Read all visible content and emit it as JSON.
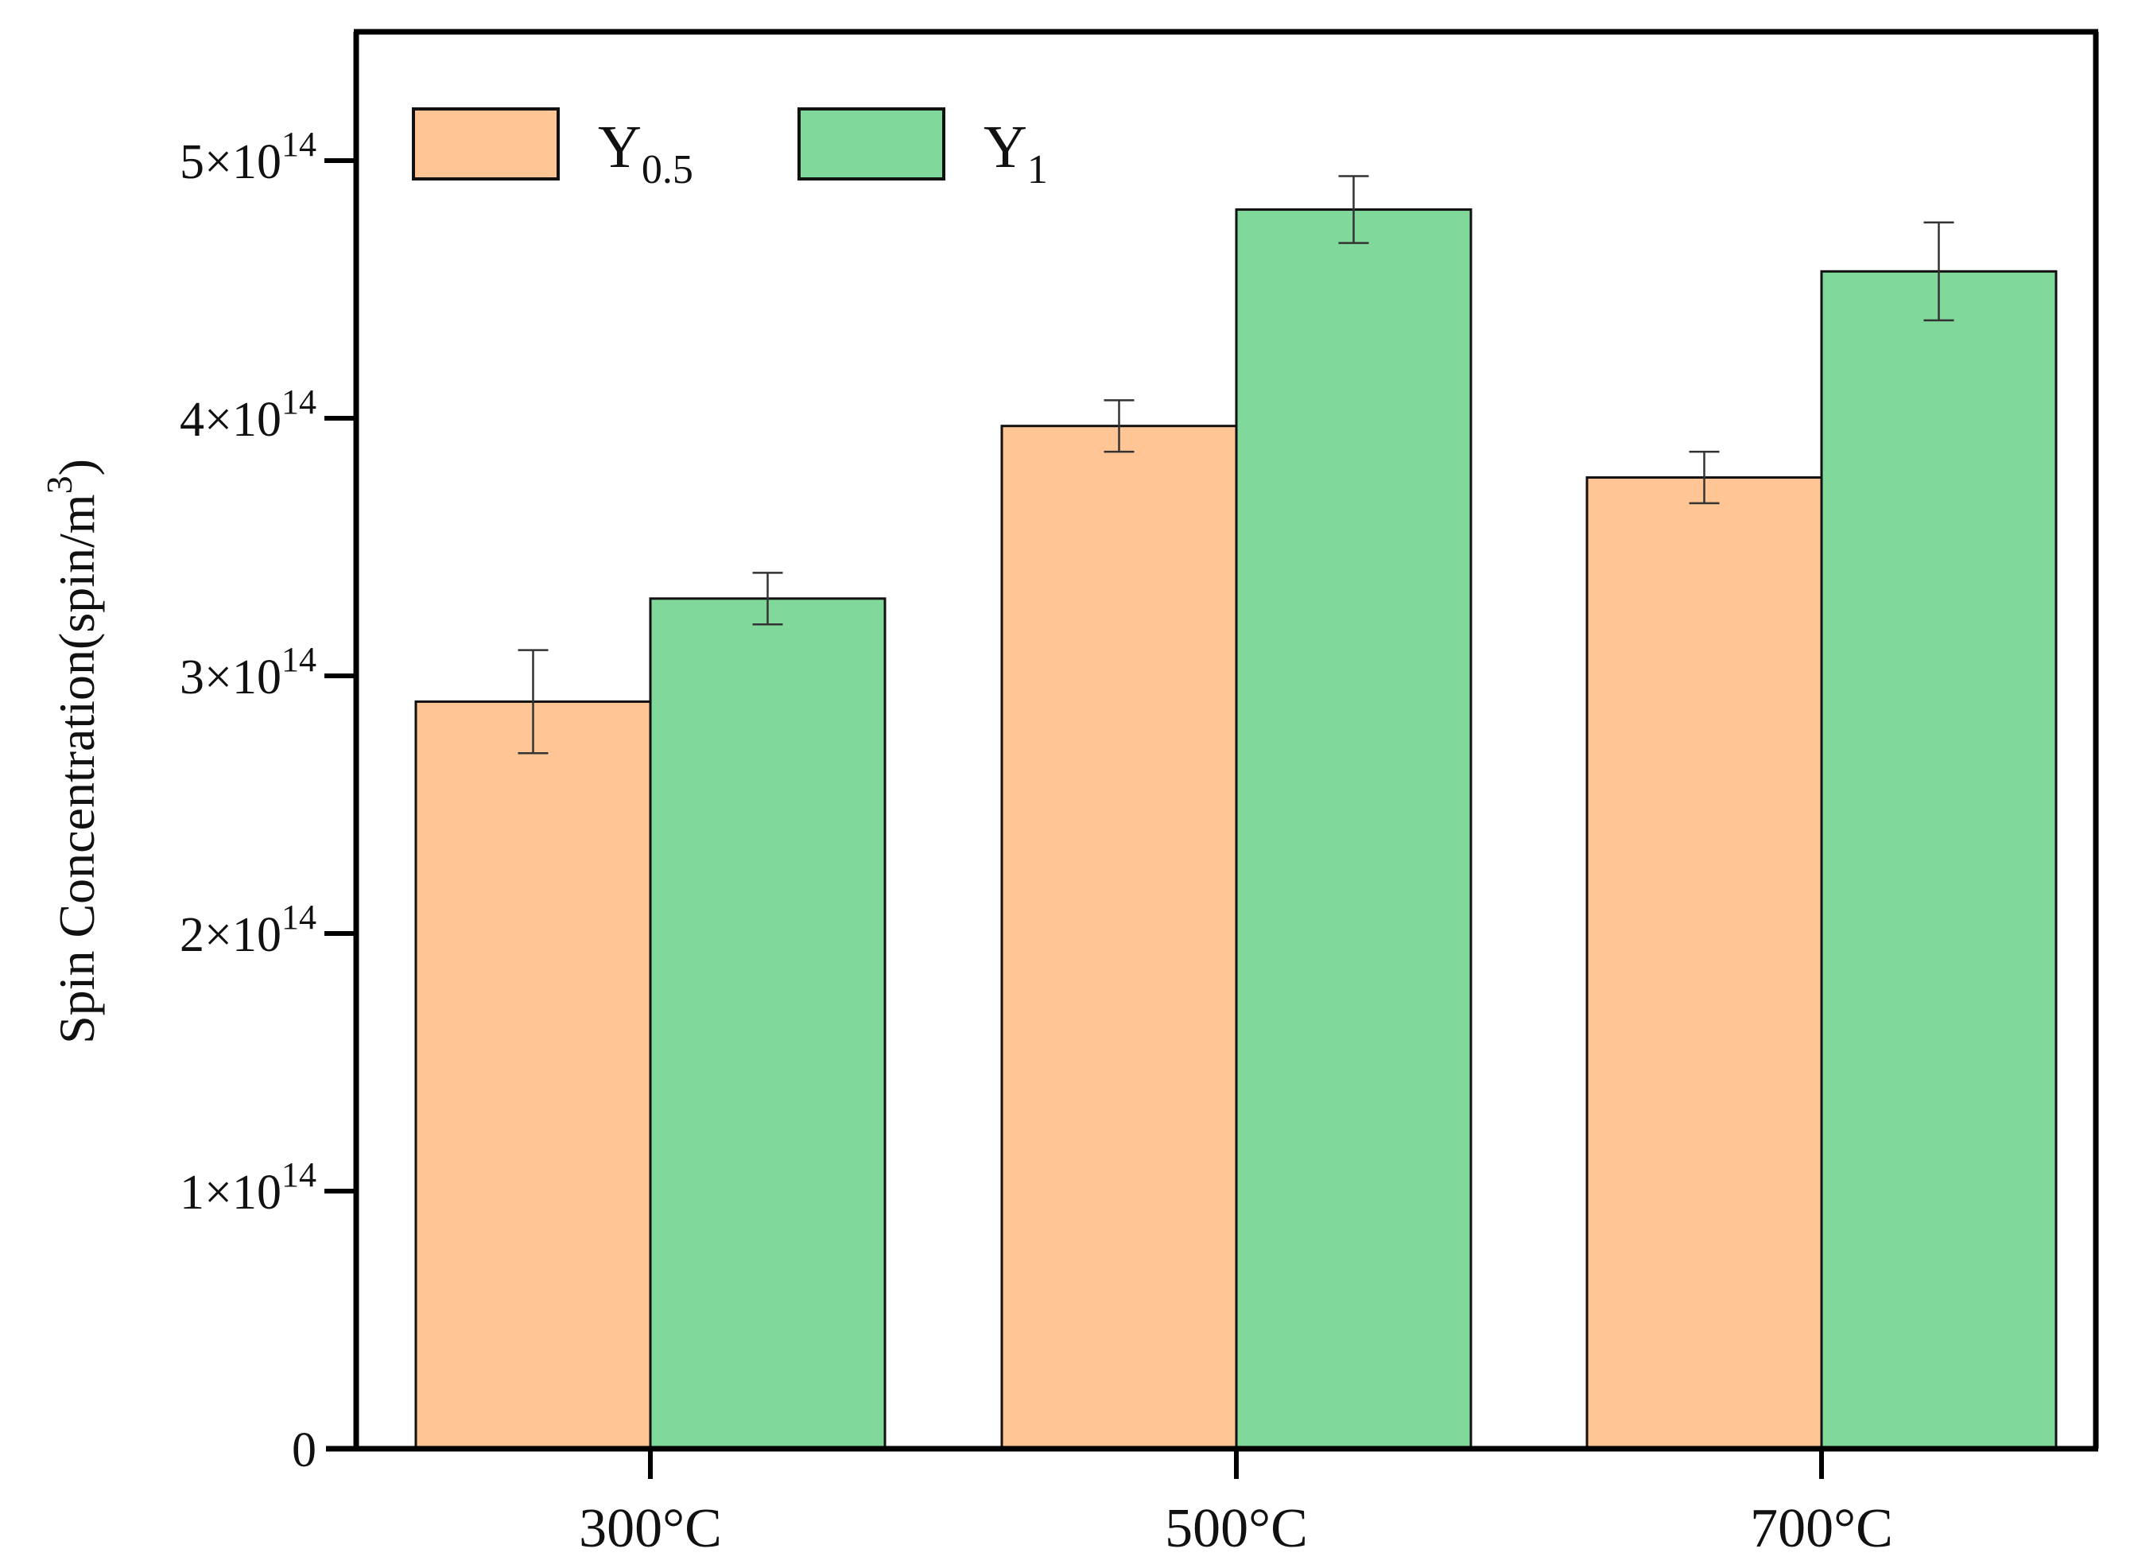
{
  "chart_data": {
    "type": "bar",
    "title": "",
    "xlabel": "",
    "ylabel": {
      "main": "Spin Concentration(spin/m",
      "superscript": "3",
      "close": ")"
    },
    "categories": [
      "300°C",
      "500°C",
      "700°C"
    ],
    "series": [
      {
        "name": "Y",
        "name_subscript": "0.5",
        "color": "#FFC595",
        "values": [
          290000000000000.0,
          397000000000000.0,
          377000000000000.0
        ],
        "errors": [
          20000000000000.0,
          10000000000000.0,
          10000000000000.0
        ]
      },
      {
        "name": "Y",
        "name_subscript": "1",
        "color": "#80D89B",
        "values": [
          330000000000000.0,
          481000000000000.0,
          457000000000000.0
        ],
        "errors": [
          10000000000000.0,
          13000000000000.0,
          19000000000000.0
        ]
      }
    ],
    "ylim": [
      0,
      550000000000000.0
    ],
    "yticks": [
      {
        "value": 0,
        "mantissa": "0",
        "exponent": ""
      },
      {
        "value": 100000000000000.0,
        "mantissa": "1×10",
        "exponent": "14"
      },
      {
        "value": 200000000000000.0,
        "mantissa": "2×10",
        "exponent": "14"
      },
      {
        "value": 300000000000000.0,
        "mantissa": "3×10",
        "exponent": "14"
      },
      {
        "value": 400000000000000.0,
        "mantissa": "4×10",
        "exponent": "14"
      },
      {
        "value": 500000000000000.0,
        "mantissa": "5×10",
        "exponent": "14"
      }
    ],
    "legend_position": "top-left",
    "grid": false,
    "axis_color": "#000000",
    "bar_edge_color": "#111111",
    "errorbar_color": "#333333"
  }
}
